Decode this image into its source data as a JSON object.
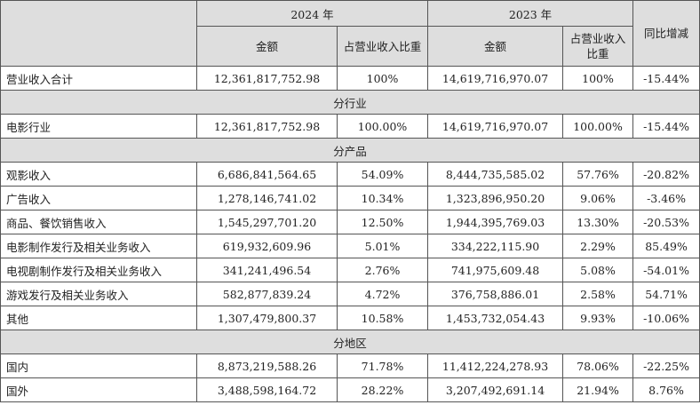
{
  "header": {
    "year_2024": "2024 年",
    "year_2023": "2023 年",
    "amount_2024": "金额",
    "share_2024": "占营业收入比重",
    "amount_2023": "金额",
    "share_2023": "占营业收入比重",
    "yoy": "同比增减"
  },
  "total": {
    "label": "营业收入合计",
    "a2024": "12,361,817,752.98",
    "s2024": "100%",
    "a2023": "14,619,716,970.07",
    "s2023": "100%",
    "yoy": "-15.44%"
  },
  "sections": [
    {
      "title": "分行业",
      "rows": [
        {
          "label": "电影行业",
          "a2024": "12,361,817,752.98",
          "s2024": "100.00%",
          "a2023": "14,619,716,970.07",
          "s2023": "100.00%",
          "yoy": "-15.44%"
        }
      ]
    },
    {
      "title": "分产品",
      "rows": [
        {
          "label": "观影收入",
          "a2024": "6,686,841,564.65",
          "s2024": "54.09%",
          "a2023": "8,444,735,585.02",
          "s2023": "57.76%",
          "yoy": "-20.82%"
        },
        {
          "label": "广告收入",
          "a2024": "1,278,146,741.02",
          "s2024": "10.34%",
          "a2023": "1,323,896,950.20",
          "s2023": "9.06%",
          "yoy": "-3.46%"
        },
        {
          "label": "商品、餐饮销售收入",
          "a2024": "1,545,297,701.20",
          "s2024": "12.50%",
          "a2023": "1,944,395,769.03",
          "s2023": "13.30%",
          "yoy": "-20.53%"
        },
        {
          "label": "电影制作发行及相关业务收入",
          "a2024": "619,932,609.96",
          "s2024": "5.01%",
          "a2023": "334,222,115.90",
          "s2023": "2.29%",
          "yoy": "85.49%"
        },
        {
          "label": "电视剧制作发行及相关业务收入",
          "a2024": "341,241,496.54",
          "s2024": "2.76%",
          "a2023": "741,975,609.48",
          "s2023": "5.08%",
          "yoy": "-54.01%"
        },
        {
          "label": "游戏发行及相关业务收入",
          "a2024": "582,877,839.24",
          "s2024": "4.72%",
          "a2023": "376,758,886.01",
          "s2023": "2.58%",
          "yoy": "54.71%"
        },
        {
          "label": "其他",
          "a2024": "1,307,479,800.37",
          "s2024": "10.58%",
          "a2023": "1,453,732,054.43",
          "s2023": "9.93%",
          "yoy": "-10.06%"
        }
      ]
    },
    {
      "title": "分地区",
      "rows": [
        {
          "label": "国内",
          "a2024": "8,873,219,588.26",
          "s2024": "71.78%",
          "a2023": "11,412,224,278.93",
          "s2023": "78.06%",
          "yoy": "-22.25%"
        },
        {
          "label": "国外",
          "a2024": "3,488,598,164.72",
          "s2024": "28.22%",
          "a2023": "3,207,492,691.14",
          "s2023": "21.94%",
          "yoy": "8.76%"
        }
      ]
    }
  ]
}
